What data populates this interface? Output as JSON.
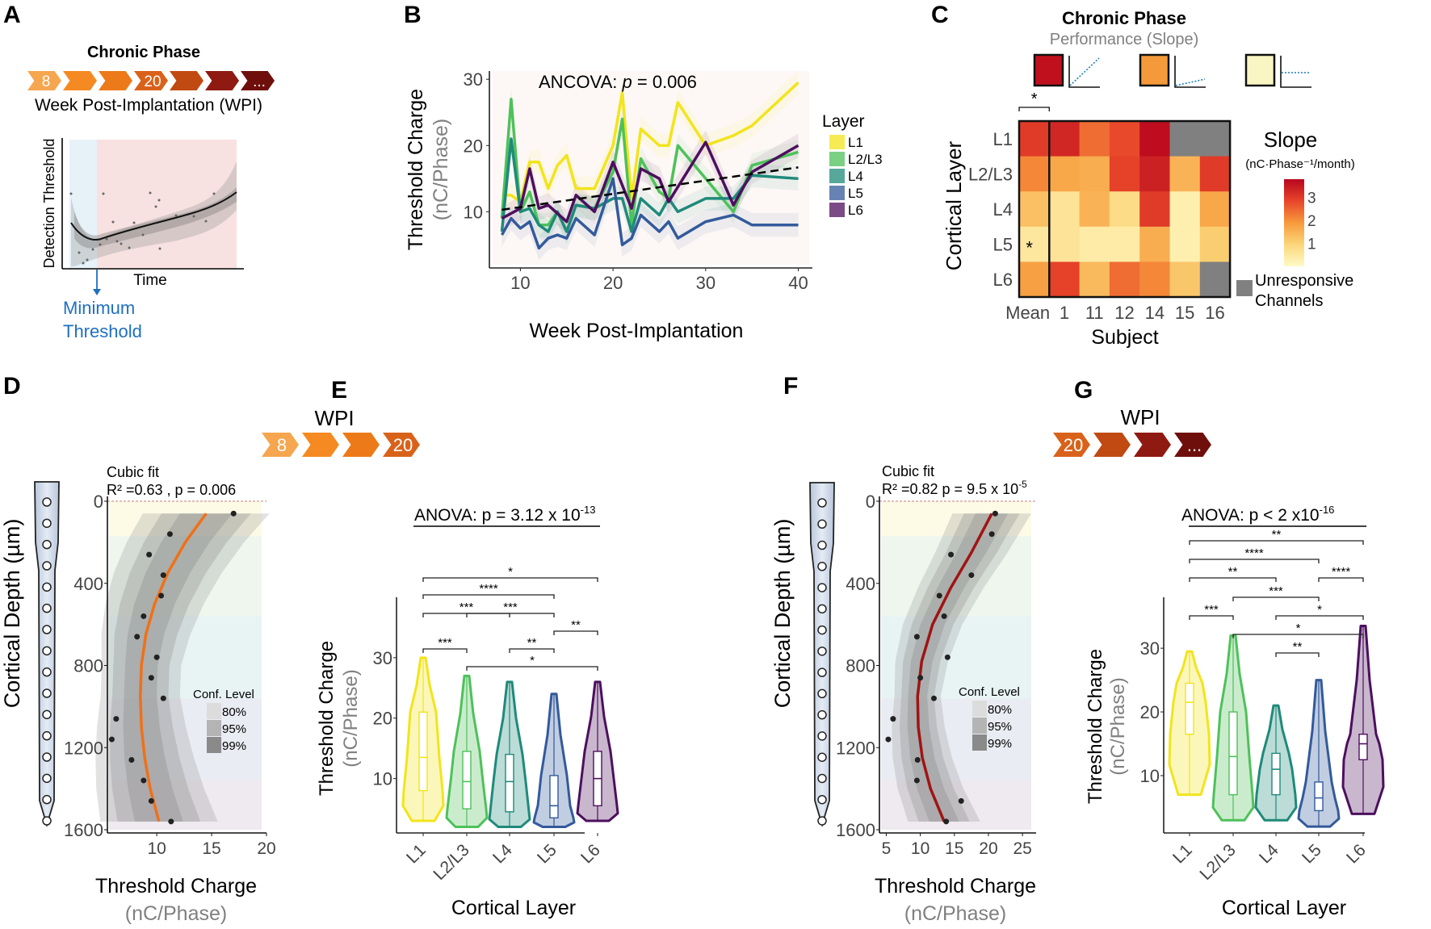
{
  "panels": {
    "A": {
      "letter": "A",
      "title": "Chronic Phase",
      "chevrons": [
        {
          "label": "8",
          "color": "#f5a64f"
        },
        {
          "label": "",
          "color": "#f58a22"
        },
        {
          "label": "",
          "color": "#ec7a19"
        },
        {
          "label": "20",
          "color": "#d9621a"
        },
        {
          "label": "",
          "color": "#c04a12"
        },
        {
          "label": "",
          "color": "#8e1a12"
        },
        {
          "label": "...",
          "color": "#6e0f0c"
        }
      ],
      "subtitle": "Week Post-Implantation (WPI)",
      "ylabel": "Detection Threshold",
      "xlabel": "Time",
      "annotation_line1": "Minimum",
      "annotation_line2": "Threshold",
      "annotation_color": "#1f6fc2"
    },
    "B": {
      "letter": "B",
      "annotation": "ANCOVA: ",
      "annotation_p": "p",
      "annotation_val": " = 0.006",
      "ylabel": "Threshold Charge",
      "ylabel2": "(nC/Phase)",
      "xlabel": "Week Post-Implantation",
      "legend_title": "Layer"
    },
    "C": {
      "letter": "C",
      "title": "Chronic Phase",
      "subtitle": "Performance (Slope)",
      "ylabel": "Cortical Layer",
      "xlabel": "Subject",
      "legend_title": "Slope",
      "legend_units": "(nC·Phase⁻¹/month)",
      "unresponsive_label1": "Unresponsive",
      "unresponsive_label2": "Channels",
      "sig_mark": "*",
      "example_colors": [
        "#c0101e",
        "#f59a3a",
        "#f9f6c4"
      ]
    },
    "D": {
      "letter": "D",
      "fit_title": "Cubic fit",
      "fit_stats": "R² =0.63 , p = 0.006",
      "ylabel": "Cortical Depth (µm)",
      "xlabel": "Threshold Charge",
      "xlabel2": "(nC/Phase)",
      "conf_title": "Conf. Level",
      "conf_levels": [
        "80%",
        "95%",
        "99%"
      ],
      "fit_color": "#f07018"
    },
    "E": {
      "letter": "E",
      "wpi_label": "WPI",
      "chevrons": [
        {
          "label": "8",
          "color": "#f5a64f"
        },
        {
          "label": "",
          "color": "#f58a22"
        },
        {
          "label": "",
          "color": "#ec7a19"
        },
        {
          "label": "20",
          "color": "#d9621a"
        }
      ],
      "anova": "ANOVA: p = 3.12 x 10",
      "anova_exp": "-13",
      "ylabel": "Threshold Charge",
      "ylabel2": "(nC/Phase)",
      "xlabel": "Cortical Layer"
    },
    "F": {
      "letter": "F",
      "fit_title": "Cubic fit",
      "fit_stats": "R² =0.82 p = 9.5 x 10",
      "fit_stats_exp": "-5",
      "ylabel": "Cortical Depth (µm)",
      "xlabel": "Threshold Charge",
      "xlabel2": "(nC/Phase)",
      "conf_title": "Conf. Level",
      "conf_levels": [
        "80%",
        "95%",
        "99%"
      ],
      "fit_color": "#a01414"
    },
    "G": {
      "letter": "G",
      "wpi_label": "WPI",
      "chevrons": [
        {
          "label": "20",
          "color": "#d9621a"
        },
        {
          "label": "",
          "color": "#c04a12"
        },
        {
          "label": "",
          "color": "#8e1a12"
        },
        {
          "label": "...",
          "color": "#6e0f0c"
        }
      ],
      "anova": "ANOVA: p < 2 x10",
      "anova_exp": "-16",
      "ylabel": "Threshold Charge",
      "ylabel2": "(nC/Phase)",
      "xlabel": "Cortical Layer"
    }
  },
  "layer_colors": {
    "L1": "#f2e41c",
    "L2/L3": "#4ec15a",
    "L4": "#1f8a7a",
    "L5": "#335a9b",
    "L6": "#4d0f5e"
  },
  "chart_data": [
    {
      "id": "B",
      "type": "line",
      "title": "ANCOVA: p = 0.006",
      "xlabel": "Week Post-Implantation",
      "ylabel": "Threshold Charge (nC/Phase)",
      "xlim": [
        7,
        41
      ],
      "ylim": [
        2,
        31
      ],
      "xticks": [
        10,
        20,
        30,
        40
      ],
      "yticks": [
        10,
        20,
        30
      ],
      "legend": "right",
      "series": [
        {
          "name": "L1",
          "color": "#f2e41c",
          "x": [
            8,
            9,
            10,
            11,
            12,
            13,
            14,
            15,
            16,
            18,
            20,
            21,
            22,
            23,
            25,
            26,
            27,
            30,
            33,
            35,
            40
          ],
          "y": [
            12.5,
            12.5,
            11.5,
            17.5,
            17.5,
            13.5,
            17,
            18.5,
            13.5,
            13.5,
            20,
            28,
            12,
            22.5,
            20,
            20,
            26.5,
            20,
            21.5,
            23,
            29.5
          ]
        },
        {
          "name": "L2/L3",
          "color": "#4ec15a",
          "x": [
            8,
            9,
            10,
            11,
            12,
            13,
            14,
            15,
            16,
            18,
            20,
            21,
            22,
            23,
            25,
            26,
            27,
            30,
            33,
            35,
            40
          ],
          "y": [
            9,
            27,
            10,
            13,
            8,
            8,
            10,
            7,
            11,
            10.5,
            16,
            24,
            8,
            18,
            13,
            12,
            20,
            15,
            10,
            17,
            19
          ]
        },
        {
          "name": "L4",
          "color": "#1f8a7a",
          "x": [
            8,
            9,
            10,
            11,
            12,
            13,
            14,
            15,
            16,
            18,
            20,
            21,
            22,
            23,
            25,
            26,
            27,
            30,
            33,
            35,
            40
          ],
          "y": [
            7,
            21,
            10,
            10.5,
            8,
            7,
            10,
            7,
            11,
            10.5,
            12,
            12,
            7,
            12,
            9.5,
            12,
            10,
            12,
            12,
            15.5,
            15
          ]
        },
        {
          "name": "L5",
          "color": "#335a9b",
          "x": [
            8,
            9,
            10,
            11,
            12,
            13,
            14,
            15,
            16,
            18,
            20,
            21,
            22,
            23,
            25,
            26,
            27,
            30,
            33,
            35,
            40
          ],
          "y": [
            6.5,
            9,
            7.5,
            8.5,
            4.5,
            6,
            6.5,
            6,
            9,
            6.5,
            15,
            5,
            6,
            9.5,
            7,
            8.5,
            6,
            8.5,
            9.5,
            8,
            8
          ]
        },
        {
          "name": "L6",
          "color": "#4d0f5e",
          "x": [
            8,
            10,
            11,
            12,
            13,
            15,
            16,
            18,
            20,
            22,
            23,
            25,
            26,
            30,
            33,
            35,
            40
          ],
          "y": [
            9,
            10.5,
            16.5,
            10.5,
            11,
            8.5,
            12.5,
            10,
            17.5,
            10.5,
            16.5,
            15,
            11.5,
            20.5,
            11,
            16,
            20
          ]
        },
        {
          "name": "trend",
          "color": "#000000",
          "dashed": true,
          "x": [
            8,
            40
          ],
          "y": [
            10.3,
            16.7
          ]
        }
      ]
    },
    {
      "id": "C",
      "type": "heatmap",
      "title": "Chronic Phase — Performance (Slope)",
      "xlabel": "Subject",
      "ylabel": "Cortical Layer",
      "columns": [
        "Mean",
        "1",
        "11",
        "12",
        "14",
        "15",
        "16"
      ],
      "rows": [
        "L1",
        "L2/L3",
        "L4",
        "L5",
        "L6"
      ],
      "values": [
        [
          3.0,
          3.3,
          2.4,
          2.8,
          3.7,
          null,
          null
        ],
        [
          2.1,
          1.7,
          1.6,
          2.9,
          3.4,
          1.5,
          3.0
        ],
        [
          1.3,
          0.6,
          1.5,
          0.8,
          3.0,
          0.3,
          1.7
        ],
        [
          0.5,
          0.6,
          0.4,
          0.4,
          1.6,
          0.3,
          1.1
        ],
        [
          1.8,
          2.9,
          1.4,
          2.4,
          2.1,
          1.2,
          null
        ]
      ],
      "null_meaning": "Unresponsive Channels",
      "colorbar_ticks": [
        1,
        2,
        3
      ],
      "colorbar_range": [
        0,
        3.8
      ],
      "significant": [
        {
          "row": "L5",
          "col": "Mean"
        }
      ],
      "bracket_sig": "*"
    },
    {
      "id": "D",
      "type": "scatter",
      "xlabel": "Threshold Charge (nC/Phase)",
      "ylabel": "Cortical Depth (µm)",
      "xlim": [
        5.5,
        20
      ],
      "ylim": [
        1600,
        0
      ],
      "xticks": [
        10,
        15,
        20
      ],
      "yticks": [
        0,
        400,
        800,
        1200,
        1600
      ],
      "points": [
        [
          17.0,
          60
        ],
        [
          11.2,
          160
        ],
        [
          9.3,
          260
        ],
        [
          10.6,
          360
        ],
        [
          10.4,
          460
        ],
        [
          8.8,
          560
        ],
        [
          8.2,
          660
        ],
        [
          10.0,
          760
        ],
        [
          9.5,
          860
        ],
        [
          10.6,
          960
        ],
        [
          6.3,
          1060
        ],
        [
          5.9,
          1160
        ],
        [
          7.7,
          1260
        ],
        [
          8.8,
          1360
        ],
        [
          9.5,
          1460
        ],
        [
          11.3,
          1560
        ]
      ],
      "fit": "cubic",
      "fit_points": [
        [
          14.5,
          60
        ],
        [
          12.6,
          200
        ],
        [
          11.0,
          350
        ],
        [
          9.8,
          500
        ],
        [
          9.0,
          650
        ],
        [
          8.6,
          800
        ],
        [
          8.5,
          950
        ],
        [
          8.6,
          1100
        ],
        [
          8.9,
          1250
        ],
        [
          9.4,
          1400
        ],
        [
          10.2,
          1560
        ]
      ],
      "layer_bands": [
        {
          "layer": "L1",
          "from": 0,
          "to": 170,
          "color": "#fdfae6"
        },
        {
          "layer": "L2/L3",
          "from": 170,
          "to": 560,
          "color": "#eef6ee"
        },
        {
          "layer": "L4",
          "from": 560,
          "to": 960,
          "color": "#e8f4f4"
        },
        {
          "layer": "L5",
          "from": 960,
          "to": 1360,
          "color": "#eaecf3"
        },
        {
          "layer": "L6",
          "from": 1360,
          "to": 1600,
          "color": "#efe9f0"
        }
      ],
      "stats": {
        "R2": 0.63,
        "p": 0.006
      }
    },
    {
      "id": "E",
      "type": "violin",
      "xlabel": "Cortical Layer",
      "ylabel": "Threshold Charge (nC/Phase)",
      "ylim": [
        1,
        40
      ],
      "yticks": [
        10,
        20,
        30
      ],
      "categories": [
        "L1",
        "L2/L3",
        "L4",
        "L5",
        "L6"
      ],
      "stats": [
        {
          "min": 3,
          "q1": 8,
          "median": 13.5,
          "q3": 21,
          "max": 30
        },
        {
          "min": 2,
          "q1": 5,
          "median": 9.5,
          "q3": 14.5,
          "max": 27
        },
        {
          "min": 2,
          "q1": 4.5,
          "median": 9.5,
          "q3": 14,
          "max": 26
        },
        {
          "min": 2,
          "q1": 3.5,
          "median": 5.5,
          "q3": 10.5,
          "max": 24
        },
        {
          "min": 3,
          "q1": 5.5,
          "median": 10,
          "q3": 14.5,
          "max": 26
        }
      ],
      "comparisons": [
        {
          "a": "L1",
          "b": "L6",
          "sig": "*"
        },
        {
          "a": "L1",
          "b": "L5",
          "sig": "****"
        },
        {
          "a": "L1",
          "b": "L4",
          "sig": "***"
        },
        {
          "a": "L5",
          "b": "L6",
          "sig": "**"
        },
        {
          "a": "L2/L3",
          "b": "L5",
          "sig": "***"
        },
        {
          "a": "L1",
          "b": "L2/L3",
          "sig": "***"
        },
        {
          "a": "L4",
          "b": "L5",
          "sig": "**"
        },
        {
          "a": "L2/L3",
          "b": "L6",
          "sig": "*"
        }
      ],
      "anova_p": "3.12 x 10^-13"
    },
    {
      "id": "F",
      "type": "scatter",
      "xlabel": "Threshold Charge (nC/Phase)",
      "ylabel": "Cortical Depth (µm)",
      "xlim": [
        4,
        27
      ],
      "ylim": [
        1600,
        0
      ],
      "xticks": [
        5,
        10,
        15,
        20,
        25
      ],
      "yticks": [
        0,
        400,
        800,
        1200,
        1600
      ],
      "points": [
        [
          21.0,
          60
        ],
        [
          20.5,
          160
        ],
        [
          14.5,
          260
        ],
        [
          17.5,
          360
        ],
        [
          12.8,
          460
        ],
        [
          13.5,
          560
        ],
        [
          9.5,
          660
        ],
        [
          14.0,
          760
        ],
        [
          10.0,
          860
        ],
        [
          12.0,
          960
        ],
        [
          6.0,
          1060
        ],
        [
          5.3,
          1160
        ],
        [
          9.6,
          1260
        ],
        [
          9.5,
          1360
        ],
        [
          16.0,
          1460
        ],
        [
          13.8,
          1560
        ]
      ],
      "fit": "cubic",
      "fit_points": [
        [
          20.5,
          60
        ],
        [
          17.5,
          250
        ],
        [
          14.5,
          420
        ],
        [
          11.8,
          600
        ],
        [
          10.2,
          780
        ],
        [
          9.6,
          950
        ],
        [
          9.7,
          1100
        ],
        [
          10.3,
          1250
        ],
        [
          11.5,
          1400
        ],
        [
          13.5,
          1560
        ]
      ],
      "layer_bands": [
        {
          "layer": "L1",
          "from": 0,
          "to": 170,
          "color": "#fdfae6"
        },
        {
          "layer": "L2/L3",
          "from": 170,
          "to": 560,
          "color": "#eef6ee"
        },
        {
          "layer": "L4",
          "from": 560,
          "to": 960,
          "color": "#e8f4f4"
        },
        {
          "layer": "L5",
          "from": 960,
          "to": 1360,
          "color": "#eaecf3"
        },
        {
          "layer": "L6",
          "from": 1360,
          "to": 1600,
          "color": "#efe9f0"
        }
      ],
      "stats": {
        "R2": 0.82,
        "p": "9.5 x 10^-5"
      }
    },
    {
      "id": "G",
      "type": "violin",
      "xlabel": "Cortical Layer",
      "ylabel": "Threshold Charge (nC/Phase)",
      "ylim": [
        1,
        38
      ],
      "yticks": [
        10,
        20,
        30
      ],
      "categories": [
        "L1",
        "L2/L3",
        "L4",
        "L5",
        "L6"
      ],
      "stats": [
        {
          "min": 7,
          "q1": 16.5,
          "median": 21.5,
          "q3": 24.5,
          "max": 29.5
        },
        {
          "min": 3,
          "q1": 7,
          "median": 13,
          "q3": 20,
          "max": 32
        },
        {
          "min": 3,
          "q1": 7,
          "median": 11,
          "q3": 13.5,
          "max": 21
        },
        {
          "min": 2,
          "q1": 4.5,
          "median": 6.5,
          "q3": 9,
          "max": 25
        },
        {
          "min": 4,
          "q1": 12.5,
          "median": 15,
          "q3": 16.5,
          "max": 33.5
        }
      ],
      "comparisons": [
        {
          "a": "L1",
          "b": "L6",
          "sig": "**"
        },
        {
          "a": "L1",
          "b": "L5",
          "sig": "****"
        },
        {
          "a": "L1",
          "b": "L4",
          "sig": "**"
        },
        {
          "a": "L5",
          "b": "L6",
          "sig": "****"
        },
        {
          "a": "L2/L3",
          "b": "L5",
          "sig": "***"
        },
        {
          "a": "L1",
          "b": "L2/L3",
          "sig": "***"
        },
        {
          "a": "L4",
          "b": "L6",
          "sig": "*"
        },
        {
          "a": "L2/L3",
          "b": "L6",
          "sig": "*"
        },
        {
          "a": "L4",
          "b": "L5",
          "sig": "**"
        }
      ],
      "anova_p": "< 2 x 10^-16"
    }
  ]
}
